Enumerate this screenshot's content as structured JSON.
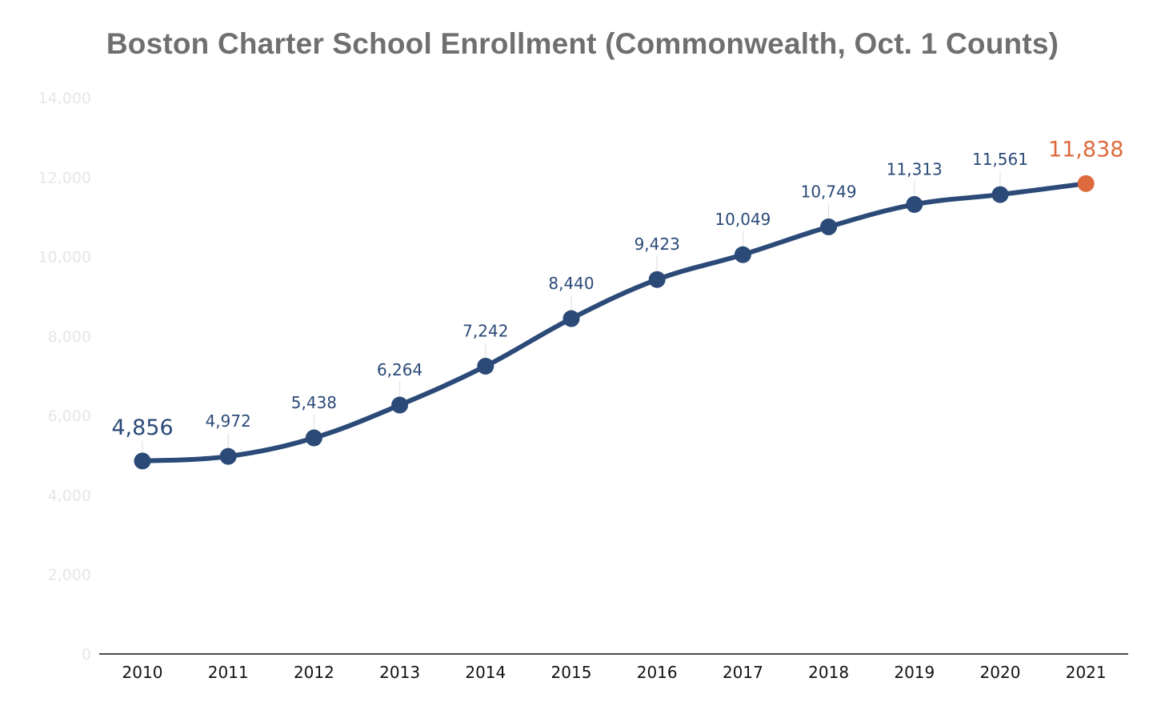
{
  "chart_data": {
    "type": "line",
    "title": "Boston Charter School Enrollment (Commonwealth, Oct. 1 Counts)",
    "xlabel": "",
    "ylabel": "",
    "categories": [
      "2010",
      "2011",
      "2012",
      "2013",
      "2014",
      "2015",
      "2016",
      "2017",
      "2018",
      "2019",
      "2020",
      "2021"
    ],
    "series": [
      {
        "values": [
          4856,
          4972,
          5438,
          6264,
          7242,
          8440,
          9423,
          10049,
          10749,
          11313,
          11561,
          11838
        ],
        "data_labels": [
          "4,856",
          "4,972",
          "5,438",
          "6,264",
          "7,242",
          "8,440",
          "9,423",
          "10,049",
          "10,749",
          "11,313",
          "11,561",
          "11,838"
        ]
      }
    ],
    "ylim": [
      0,
      14000
    ],
    "yticks": [
      0,
      2000,
      4000,
      6000,
      8000,
      10000,
      12000,
      14000
    ],
    "ytick_labels": [
      "0",
      "2,000",
      "4,000",
      "6,000",
      "8,000",
      "10,000",
      "12,000",
      "14,000"
    ],
    "grid": false,
    "legend": "none",
    "colors": {
      "line": "#2b4a78",
      "marker": "#2b4a78",
      "highlight": "#dd6a3c",
      "title": "#6f6f6f",
      "ytick": "#e6e6e6",
      "xtick": "#111111",
      "axis": "#111111"
    }
  }
}
